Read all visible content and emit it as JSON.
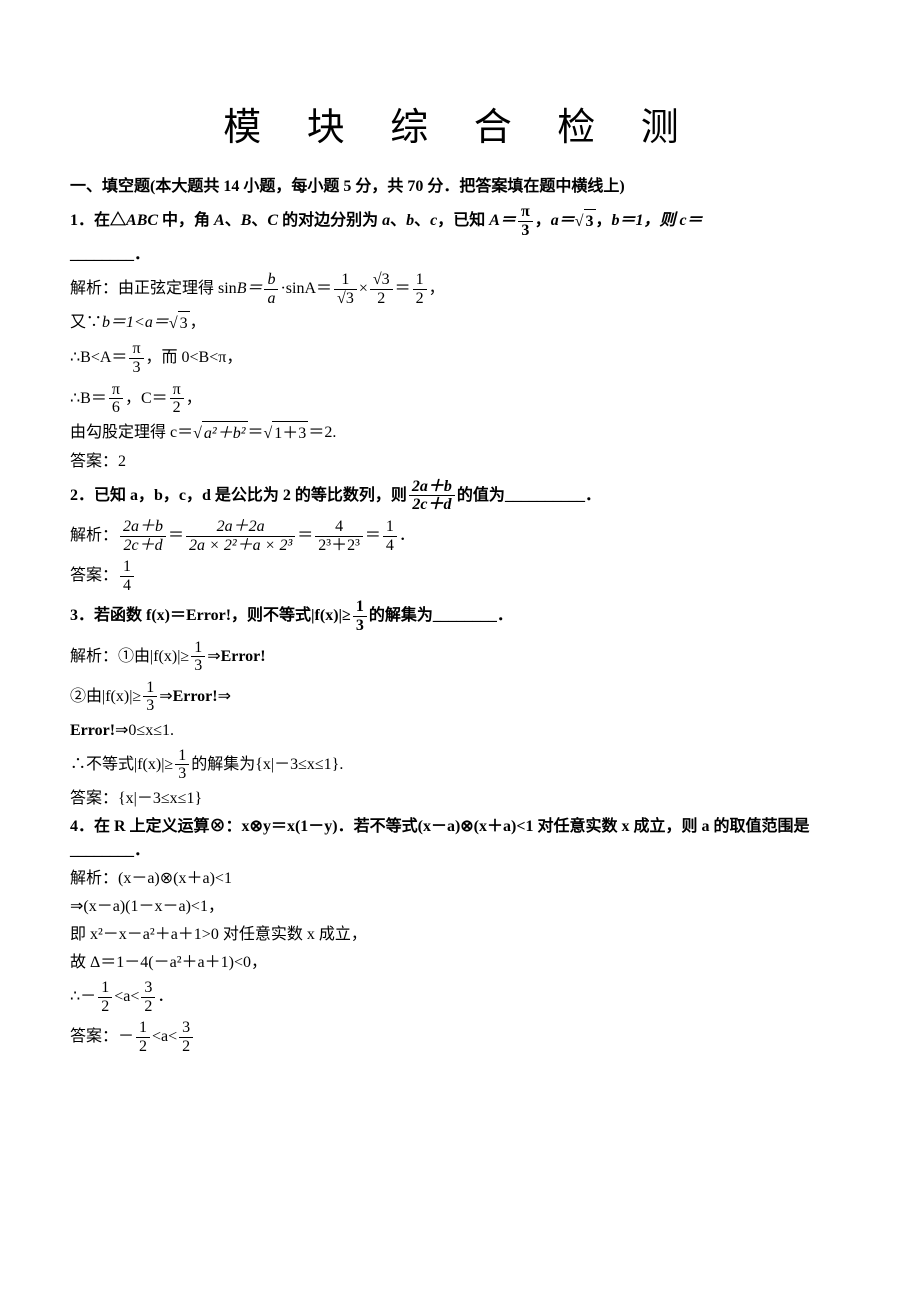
{
  "title": "模 块 综 合 检 测",
  "section1": "一、填空题(本大题共 14 小题，每小题 5 分，共 70 分．把答案填在题中横线上)",
  "q1": {
    "prompt_a": "1．在△",
    "prompt_b": " 中，角 ",
    "A": "A",
    "B": "B",
    "C": "C",
    "prompt_c": "、",
    "prompt_d": " 的对边分别为 ",
    "a": "a",
    "b": "b",
    "c": "c",
    "prompt_e": "、",
    "prompt_f": "，已知 ",
    "eqA": "A＝",
    "pi": "π",
    "three": "3",
    "eq_a": "a＝",
    "sqrt3": "3",
    "eq_b": "b＝1，则 c＝",
    "blank": "________．",
    "sol_label": "解析：由正弦定理得 sin",
    "sinB": "B＝",
    "dot": "·",
    "sinA": "sinA＝",
    "one": "1",
    "times": "×",
    "half": "2",
    "comma": "，",
    "line2a": "又∵",
    "line2b": "b＝1<a＝",
    "line3a": "∴B<A＝",
    "line3b": "，而 0<B<π，",
    "line4a": "∴B＝",
    "six": "6",
    "line4b": "，C＝",
    "two": "2",
    "line5": "由勾股定理得 c＝",
    "a2b2": "a²＋b²",
    "eq": "＝",
    "onethree": "1＋3",
    "eq2": "＝2.",
    "ans_label": "答案：2"
  },
  "q2": {
    "prompt": "2．已知 a，b，c，d 是公比为 2 的等比数列，则",
    "num": "2a＋b",
    "den": "2c＋d",
    "prompt2": "的值为",
    "blank": "__________．",
    "sol": "解析：",
    "mid1": "2a＋2a",
    "mid2": "2a  × 2²＋a  × 2³",
    "mid3": "4",
    "mid4": "2³＋2³",
    "mid5": "1",
    "mid6": "4",
    "eq": "＝",
    "dot": "．",
    "ans": "答案：",
    "one": "1",
    "four": "4"
  },
  "q3": {
    "prompt": "3．若函数 f(x)＝",
    "err": "Error!",
    "prompt2": "，则不等式|f(x)|≥",
    "one": "1",
    "three": "3",
    "prompt3": "的解集为",
    "blank": "________．",
    "sol1": "解析：①由|f(x)|≥",
    "arrow": "⇒",
    "sol2": "②由|f(x)|≥",
    "arrow2": "⇒",
    "sol3": "Error!⇒0≤x≤1.",
    "sol4": "∴不等式|f(x)|≥",
    "sol5": "的解集为{x|－3≤x≤1}.",
    "ans": "答案：{x|－3≤x≤1}"
  },
  "q4": {
    "prompt": "4．在 R 上定义运算⊗：x⊗y＝x(1－y)．若不等式(x－a)⊗(x＋a)<1 对任意实数 x 成立，则 a 的取值范围是",
    "blank": "________．",
    "sol1": "解析：(x－a)⊗(x＋a)<1",
    "sol2": "⇒(x－a)(1－x－a)<1，",
    "sol3": "即 x²－x－a²＋a＋1>0 对任意实数 x 成立，",
    "sol4": "故 Δ＝1－4(－a²＋a＋1)<0，",
    "sol5a": "∴－",
    "one": "1",
    "two": "2",
    "three": "3",
    "sol5b": "<a<",
    "dot": "．",
    "ans": "答案：－",
    "ans2": "<a<"
  }
}
